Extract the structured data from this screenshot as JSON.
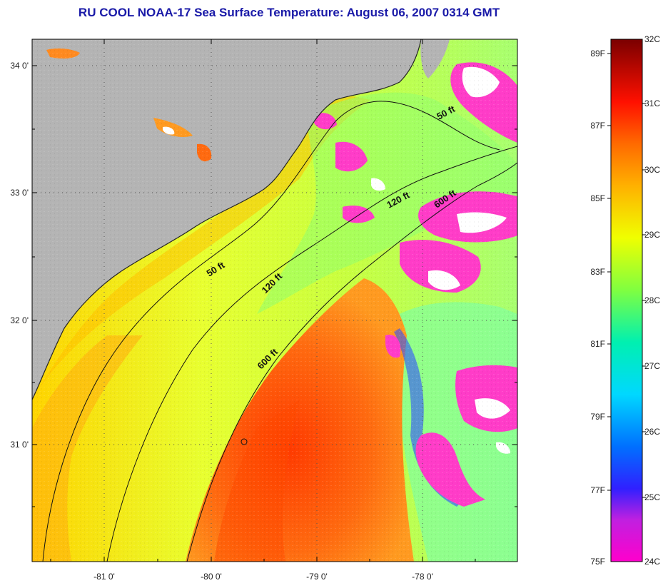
{
  "title": "RU COOL  NOAA-17  Sea Surface Temperature:  August 06, 2007 0314 GMT",
  "lat_labels": [
    "34 0'",
    "33 0'",
    "32 0'",
    "31 0'"
  ],
  "lon_labels": [
    "-81 0'",
    "-80 0'",
    "-79 0'",
    "-78 0'"
  ],
  "contour_labels": [
    "50 ft",
    "50 ft",
    "120 ft",
    "120 ft",
    "600 ft",
    "600 ft"
  ],
  "colorbar": {
    "celsius": [
      "32C",
      "31C",
      "30C",
      "29C",
      "28C",
      "27C",
      "26C",
      "25C",
      "24C"
    ],
    "fahrenheit": [
      "89F",
      "87F",
      "85F",
      "83F",
      "81F",
      "79F",
      "77F",
      "75F"
    ]
  },
  "colors": {
    "land": "#b4b4b4",
    "title": "#1a1aa8",
    "warm_core": "#ff5a10",
    "cloud_magenta": "#ff3cc8"
  }
}
